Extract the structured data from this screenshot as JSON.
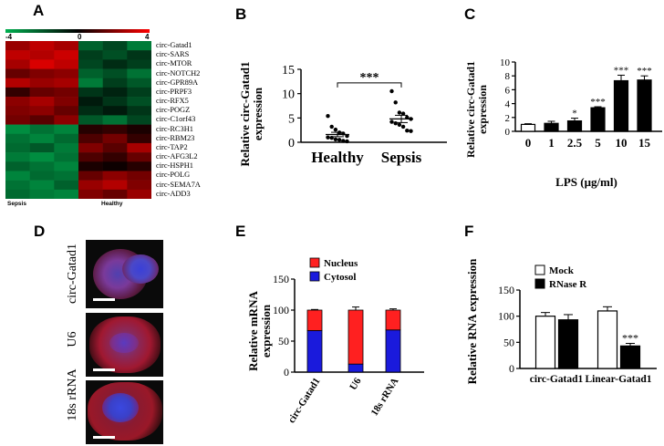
{
  "panels": {
    "A": {
      "letter": "A",
      "colorbar": {
        "min": "-4",
        "mid": "0",
        "max": "4",
        "colors": {
          "low": "#00b050",
          "mid": "#000000",
          "high": "#ff0000"
        }
      },
      "group_labels": [
        "Sepsis",
        "Healthy"
      ],
      "genes": [
        "circ-Gatad1",
        "circ-SARS",
        "circ-MTOR",
        "circ-NOTCH2",
        "circ-GPR89A",
        "circ-PRPF3",
        "circ-RFX5",
        "circ-POGZ",
        "circ-C1orf43",
        "circ-RC3H1",
        "circ-RBM23",
        "circ-TAP2",
        "circ-AFG3L2",
        "circ-HSPH1",
        "circ-POLG",
        "circ-SEMA7A",
        "circ-ADD3"
      ]
    },
    "B": {
      "letter": "B",
      "ylabel": "Relative circ-Gatad1 expression",
      "significance": "***",
      "categories": [
        "Healthy",
        "Sepsis"
      ]
    },
    "C": {
      "letter": "C",
      "ylabel": "Relative circ-Gatad1 expression",
      "xlabel": "LPS (μg/ml)"
    },
    "D": {
      "letter": "D",
      "images": [
        "circ-Gatad1",
        "U6",
        "18s rRNA"
      ]
    },
    "E": {
      "letter": "E",
      "ylabel": "Relative mRNA expression"
    },
    "F": {
      "letter": "F",
      "ylabel": "Relative RNA expression"
    }
  },
  "chart_data": [
    {
      "id": "A",
      "type": "heatmap",
      "rows": [
        "circ-Gatad1",
        "circ-SARS",
        "circ-MTOR",
        "circ-NOTCH2",
        "circ-GPR89A",
        "circ-PRPF3",
        "circ-RFX5",
        "circ-POGZ",
        "circ-C1orf43",
        "circ-RC3H1",
        "circ-RBM23",
        "circ-TAP2",
        "circ-AFG3L2",
        "circ-HSPH1",
        "circ-POLG",
        "circ-SEMA7A",
        "circ-ADD3"
      ],
      "columns": [
        "Sepsis",
        "Sepsis",
        "Sepsis",
        "Healthy",
        "Healthy",
        "Healthy"
      ],
      "values": [
        [
          2.4,
          3.0,
          2.6,
          -2.2,
          -1.6,
          -2.8
        ],
        [
          3.0,
          2.8,
          3.2,
          -1.4,
          -1.8,
          -1.2
        ],
        [
          2.6,
          3.4,
          3.0,
          -1.6,
          -1.0,
          -1.4
        ],
        [
          1.6,
          2.0,
          2.2,
          -2.2,
          -1.8,
          -2.6
        ],
        [
          2.8,
          2.4,
          2.6,
          -2.8,
          -1.4,
          -2.0
        ],
        [
          0.8,
          1.6,
          1.8,
          -1.2,
          -0.8,
          -1.4
        ],
        [
          2.2,
          2.6,
          2.0,
          -0.6,
          -1.2,
          -1.8
        ],
        [
          2.0,
          2.2,
          1.6,
          -1.0,
          -0.6,
          -1.2
        ],
        [
          1.8,
          1.4,
          2.2,
          -2.0,
          -2.6,
          -1.6
        ],
        [
          -3.2,
          -2.6,
          -3.0,
          0.6,
          0.8,
          0.4
        ],
        [
          -2.6,
          -3.0,
          -2.4,
          1.2,
          1.8,
          0.8
        ],
        [
          -2.4,
          -2.0,
          -2.8,
          2.0,
          1.4,
          2.6
        ],
        [
          -2.8,
          -3.2,
          -2.6,
          1.2,
          0.8,
          1.6
        ],
        [
          -2.2,
          -2.6,
          -3.0,
          0.4,
          0.2,
          0.6
        ],
        [
          -3.0,
          -2.4,
          -2.6,
          1.6,
          2.2,
          1.8
        ],
        [
          -2.6,
          -3.0,
          -2.2,
          2.4,
          2.8,
          2.0
        ],
        [
          -2.4,
          -2.8,
          -3.0,
          2.0,
          1.6,
          2.4
        ]
      ],
      "range": [
        -4,
        4
      ]
    },
    {
      "id": "B",
      "type": "scatter",
      "categories": [
        "Healthy",
        "Sepsis"
      ],
      "points": {
        "Healthy": [
          5.4,
          3.2,
          2.6,
          2.0,
          1.8,
          1.3,
          1.0,
          0.9,
          0.6,
          0.5,
          0.3,
          0.2
        ],
        "Sepsis": [
          10.5,
          8.2,
          6.1,
          5.9,
          5.1,
          4.8,
          4.2,
          3.9,
          3.6,
          3.2,
          2.4,
          2.3
        ]
      },
      "mean": [
        1.6,
        4.8
      ],
      "sem": [
        0.45,
        0.75
      ],
      "significance": "***",
      "ylim": [
        0,
        15
      ],
      "yticks": [
        0,
        5,
        10,
        15
      ]
    },
    {
      "id": "C",
      "type": "bar",
      "categories": [
        "0",
        "1",
        "2.5",
        "5",
        "10",
        "15"
      ],
      "values": [
        1.0,
        1.15,
        1.5,
        3.4,
        7.3,
        7.4
      ],
      "errors": [
        0.1,
        0.3,
        0.4,
        0.15,
        0.8,
        0.6
      ],
      "significance": [
        "",
        "",
        "*",
        "***",
        "***",
        "***"
      ],
      "xlabel": "LPS (μg/ml)",
      "ylim": [
        0,
        10
      ],
      "yticks": [
        0,
        2,
        4,
        6,
        8,
        10
      ]
    },
    {
      "id": "E",
      "type": "bar",
      "stacked": true,
      "categories": [
        "circ-Gatad1",
        "U6",
        "18s rRNA"
      ],
      "series": [
        {
          "name": "Cytosol",
          "color": "#1a1adc",
          "values": [
            67,
            13,
            68
          ],
          "errors": [
            3,
            1.5,
            4
          ]
        },
        {
          "name": "Nucleus",
          "color": "#ff2020",
          "values": [
            33,
            87,
            32
          ],
          "errors": [
            1,
            5,
            2
          ]
        }
      ],
      "ylim": [
        0,
        150
      ],
      "yticks": [
        0,
        50,
        100,
        150
      ]
    },
    {
      "id": "F",
      "type": "bar",
      "categories": [
        "circ-Gatad1",
        "Linear-Gatad1"
      ],
      "series": [
        {
          "name": "Mock",
          "color": "#ffffff",
          "values": [
            100,
            110
          ],
          "errors": [
            7,
            8
          ]
        },
        {
          "name": "RNase R",
          "color": "#000000",
          "values": [
            93,
            43
          ],
          "errors": [
            10,
            5
          ]
        }
      ],
      "significance": [
        "",
        "***"
      ],
      "ylim": [
        0,
        150
      ],
      "yticks": [
        0,
        50,
        100,
        150
      ]
    }
  ]
}
